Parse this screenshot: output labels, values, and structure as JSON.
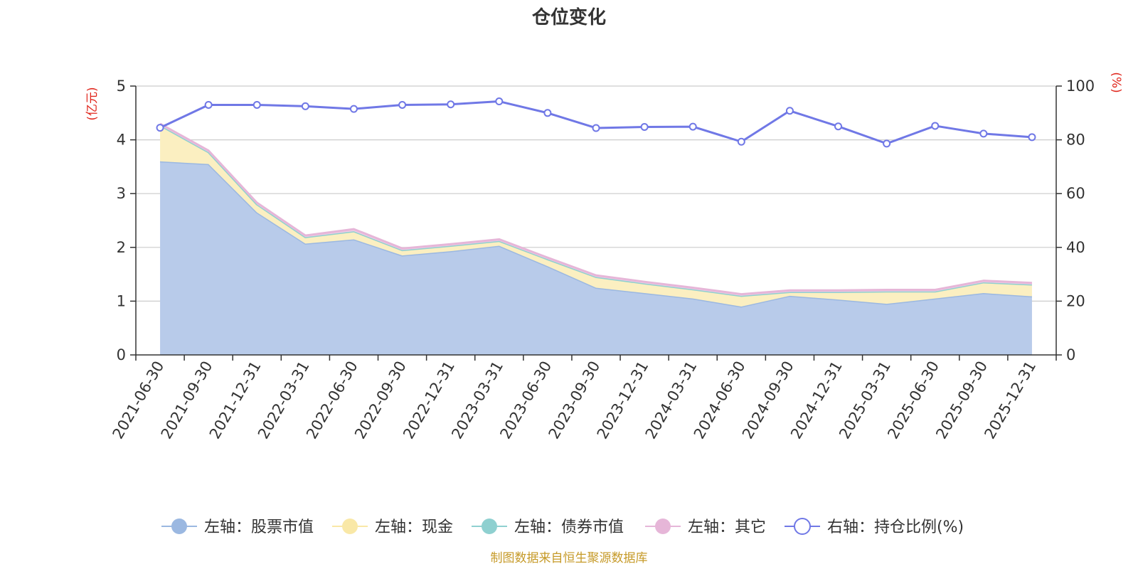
{
  "chart_data": {
    "type": "area",
    "title": "仓位变化",
    "left_axis_unit": "(亿元)",
    "right_axis_unit": "(%)",
    "categories": [
      "2021-06-30",
      "2021-09-30",
      "2021-12-31",
      "2022-03-31",
      "2022-06-30",
      "2022-09-30",
      "2022-12-31",
      "2023-03-31",
      "2023-06-30",
      "2023-09-30",
      "2023-12-31",
      "2024-03-31",
      "2024-06-30",
      "2024-09-30",
      "2024-12-31",
      "2025-03-31",
      "2025-06-30",
      "2025-09-30",
      "2025-12-31"
    ],
    "ylim_left": [
      0,
      5
    ],
    "yticks_left": [
      "0",
      "1",
      "2",
      "3",
      "4",
      "5"
    ],
    "ylim_right": [
      0,
      100
    ],
    "yticks_right": [
      "0",
      "20",
      "40",
      "60",
      "80",
      "100"
    ],
    "grid": true,
    "series": [
      {
        "name": "左轴：股票市值",
        "axis": "left",
        "stack": true,
        "color": "#9bb8e1",
        "fill": "#b8cbea",
        "values": [
          3.6,
          3.55,
          2.65,
          2.07,
          2.15,
          1.85,
          1.93,
          2.03,
          1.65,
          1.25,
          1.15,
          1.05,
          0.9,
          1.1,
          1.03,
          0.95,
          1.05,
          1.15,
          1.09
        ]
      },
      {
        "name": "左轴：现金",
        "axis": "left",
        "stack": true,
        "color": "#f9e8a7",
        "fill": "#fbefc1",
        "values": [
          0.67,
          0.22,
          0.15,
          0.12,
          0.15,
          0.1,
          0.1,
          0.09,
          0.13,
          0.2,
          0.18,
          0.17,
          0.2,
          0.07,
          0.14,
          0.23,
          0.13,
          0.2,
          0.22
        ]
      },
      {
        "name": "左轴：债券市值",
        "axis": "left",
        "stack": true,
        "color": "#8fd0d0",
        "fill": "#a9dcdc",
        "values": [
          0,
          0,
          0,
          0,
          0,
          0,
          0,
          0,
          0,
          0,
          0,
          0,
          0,
          0,
          0,
          0,
          0,
          0,
          0
        ]
      },
      {
        "name": "左轴：其它",
        "axis": "left",
        "stack": true,
        "color": "#e6b6d8",
        "fill": "#efcde6",
        "values": [
          0.03,
          0.03,
          0.03,
          0.03,
          0.04,
          0.03,
          0.03,
          0.03,
          0.03,
          0.03,
          0.03,
          0.03,
          0.03,
          0.03,
          0.03,
          0.03,
          0.03,
          0.03,
          0.03
        ]
      },
      {
        "name": "右轴：持仓比例(%)",
        "axis": "right",
        "stack": false,
        "color": "#7078e6",
        "values": [
          84.5,
          93.0,
          93.0,
          92.5,
          91.5,
          93.0,
          93.2,
          94.3,
          90.0,
          84.4,
          84.8,
          84.9,
          79.3,
          90.8,
          85.0,
          78.6,
          85.2,
          82.3,
          81.0
        ]
      }
    ],
    "legend_position": "bottom"
  },
  "source_note": "制图数据来自恒生聚源数据库"
}
